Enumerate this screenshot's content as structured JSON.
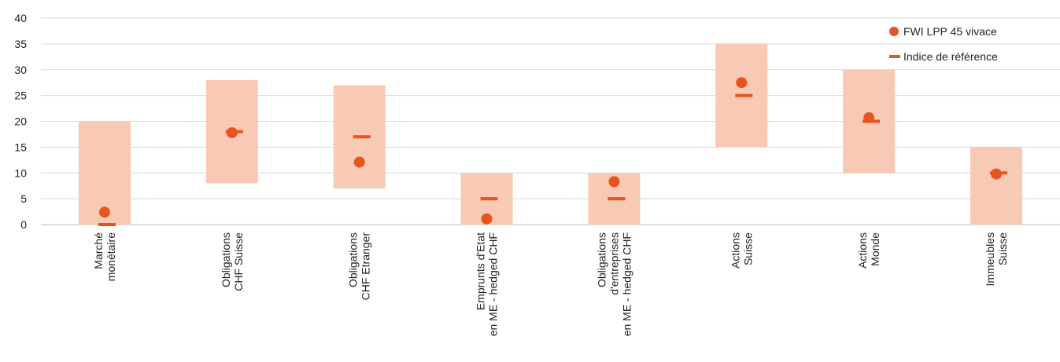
{
  "chart_data": {
    "type": "range_scatter",
    "title": "",
    "xlabel": "",
    "ylabel": "",
    "ylim": [
      0,
      40
    ],
    "yticks": [
      0,
      5,
      10,
      15,
      20,
      25,
      30,
      35,
      40
    ],
    "grid": true,
    "legend_position": "top-right",
    "categories": [
      [
        "Marché",
        "monétaire"
      ],
      [
        "Obligations",
        "CHF Suisse"
      ],
      [
        "Obligations",
        "CHF Etranger"
      ],
      [
        "Emprunts d'Etat",
        "en ME - hedged CHF"
      ],
      [
        "Obligations",
        "d'entreprises",
        "en ME - hedged CHF"
      ],
      [
        "Actions",
        "Suisse"
      ],
      [
        "Actions",
        "Monde"
      ],
      [
        "Immeubles",
        "Suisse"
      ]
    ],
    "ranges": [
      [
        0,
        20
      ],
      [
        8,
        28
      ],
      [
        7,
        27
      ],
      [
        0,
        10
      ],
      [
        0,
        10
      ],
      [
        15,
        35
      ],
      [
        10,
        30
      ],
      [
        0,
        15
      ]
    ],
    "series": [
      {
        "name": "FWI LPP 45 vivace",
        "marker": "circle",
        "values": [
          2.4,
          17.8,
          12.1,
          1.1,
          8.3,
          27.5,
          20.7,
          9.8
        ]
      },
      {
        "name": "Indice de référence",
        "marker": "dash",
        "values": [
          0,
          18,
          17,
          5,
          5,
          25,
          20,
          10
        ]
      }
    ],
    "colors": {
      "range": "#f8c9b5",
      "marker": "#e8541e",
      "grid": "#d9d9d9",
      "axis": "#bfbfbf"
    }
  }
}
